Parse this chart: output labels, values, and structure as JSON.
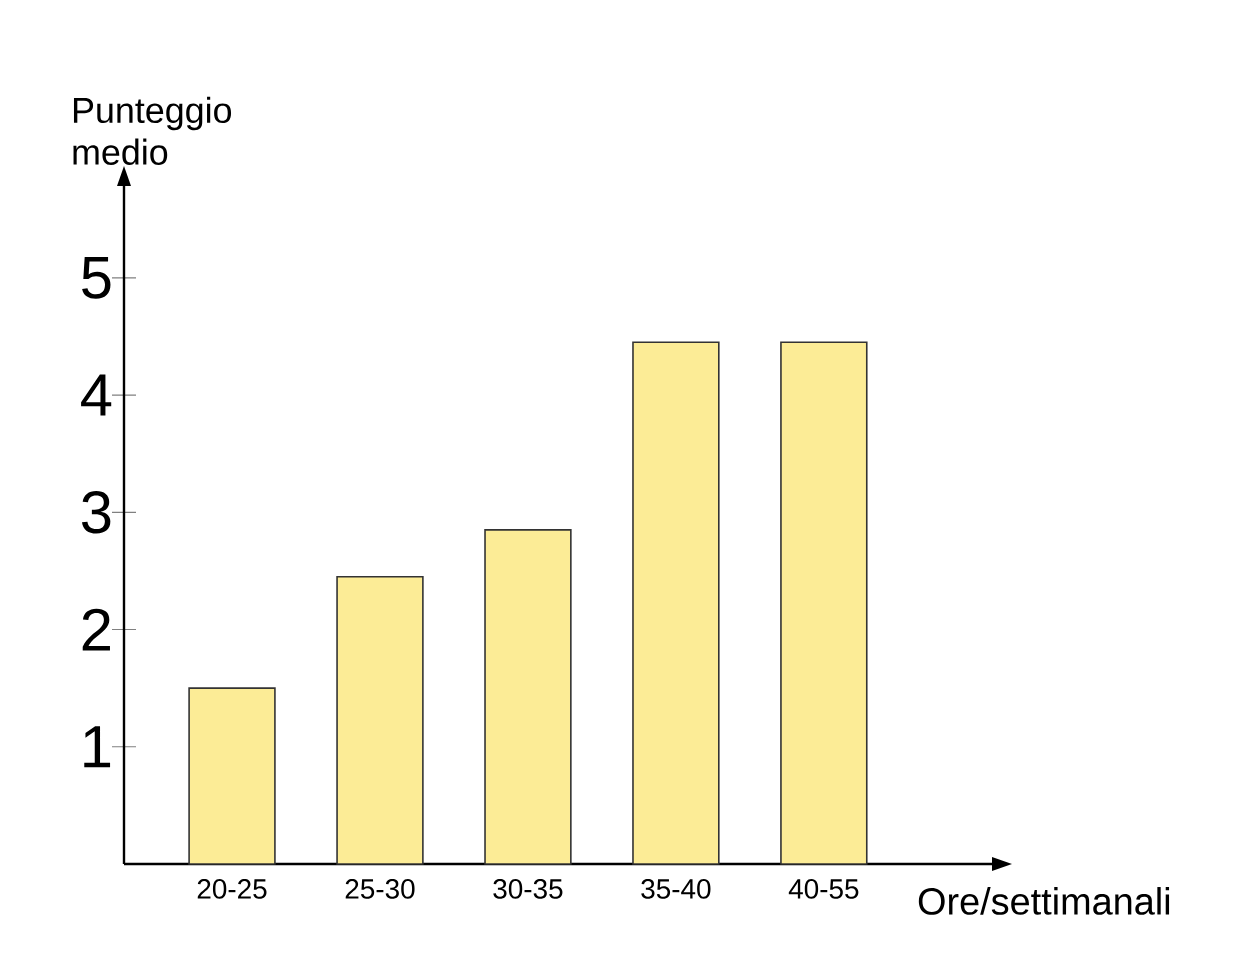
{
  "chart_data": {
    "type": "bar",
    "xlabel": "Ore/settimanali",
    "ylabel": "Punteggio medio",
    "categories": [
      "20-25",
      "25-30",
      "30-35",
      "35-40",
      "40-55"
    ],
    "values": [
      1.5,
      2.45,
      2.85,
      4.45,
      4.45
    ],
    "color": "#fcec96",
    "ylim": [
      0,
      5.8
    ],
    "yticks": [
      1,
      2,
      3,
      4,
      5
    ]
  }
}
